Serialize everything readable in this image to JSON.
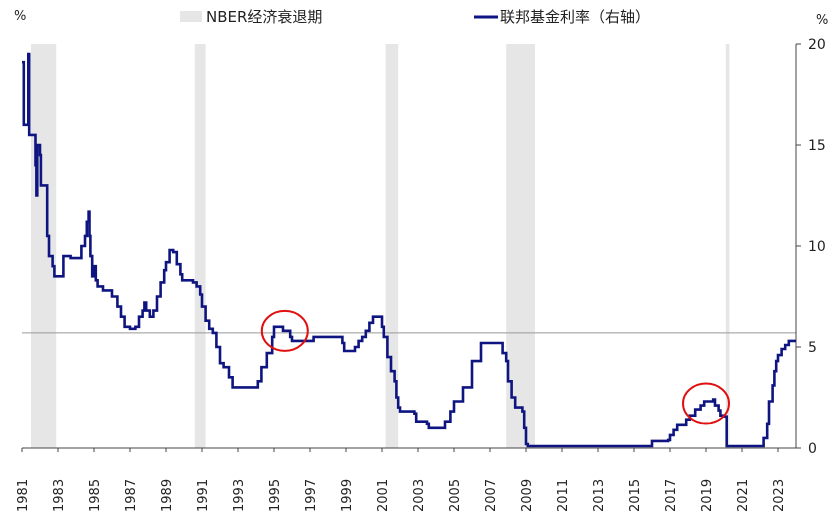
{
  "chart_data": {
    "type": "line",
    "title": "",
    "xlabel": "",
    "ylabel": "",
    "left_axis_unit": "%",
    "right_axis_unit": "%",
    "xlim": [
      1981.0,
      2024.0
    ],
    "ylim": [
      0,
      20
    ],
    "right_yticks": [
      0,
      5,
      10,
      15,
      20
    ],
    "x_tick_labels": [
      "1981",
      "1983",
      "1985",
      "1987",
      "1989",
      "1991",
      "1993",
      "1995",
      "1997",
      "1999",
      "2001",
      "2003",
      "2005",
      "2007",
      "2009",
      "2011",
      "2013",
      "2015",
      "2017",
      "2019",
      "2021",
      "2023"
    ],
    "reference_line_y": 5.7,
    "legend": {
      "placement": "top",
      "recession_label": "NBER经济衰退期",
      "series_label": "联邦基金利率（右轴）"
    },
    "recession_periods": [
      [
        1981.5,
        1982.9
      ],
      [
        1990.6,
        1991.2
      ],
      [
        2001.2,
        2001.9
      ],
      [
        2007.9,
        2009.5
      ],
      [
        2020.1,
        2020.3
      ]
    ],
    "highlights": [
      {
        "x": 1995.6,
        "y": 5.8
      },
      {
        "x": 2019.0,
        "y": 2.2
      }
    ],
    "colors": {
      "line": "#0f1580",
      "recession": "#e6e6e6",
      "highlight": "#e01010",
      "reference": "#999999"
    },
    "series": [
      {
        "name": "联邦基金利率（右轴）",
        "points": [
          [
            1981.0,
            19.1
          ],
          [
            1981.1,
            16.0
          ],
          [
            1981.3,
            16.0
          ],
          [
            1981.35,
            19.5
          ],
          [
            1981.4,
            15.5
          ],
          [
            1981.7,
            15.5
          ],
          [
            1981.75,
            14.0
          ],
          [
            1981.8,
            12.5
          ],
          [
            1981.85,
            15.0
          ],
          [
            1982.0,
            14.5
          ],
          [
            1982.05,
            13.0
          ],
          [
            1982.3,
            13.0
          ],
          [
            1982.4,
            10.5
          ],
          [
            1982.5,
            9.5
          ],
          [
            1982.7,
            9.0
          ],
          [
            1982.8,
            8.5
          ],
          [
            1983.2,
            8.5
          ],
          [
            1983.3,
            9.5
          ],
          [
            1983.6,
            9.5
          ],
          [
            1983.7,
            9.4
          ],
          [
            1984.2,
            9.4
          ],
          [
            1984.3,
            10.0
          ],
          [
            1984.5,
            10.5
          ],
          [
            1984.6,
            11.2
          ],
          [
            1984.7,
            11.7
          ],
          [
            1984.75,
            10.5
          ],
          [
            1984.8,
            9.5
          ],
          [
            1984.9,
            8.5
          ],
          [
            1985.0,
            9.0
          ],
          [
            1985.1,
            8.3
          ],
          [
            1985.2,
            8.0
          ],
          [
            1985.5,
            7.8
          ],
          [
            1985.9,
            7.8
          ],
          [
            1986.0,
            7.5
          ],
          [
            1986.3,
            7.0
          ],
          [
            1986.5,
            6.5
          ],
          [
            1986.7,
            6.0
          ],
          [
            1987.0,
            5.9
          ],
          [
            1987.3,
            6.0
          ],
          [
            1987.5,
            6.5
          ],
          [
            1987.7,
            6.8
          ],
          [
            1987.8,
            7.2
          ],
          [
            1987.9,
            6.8
          ],
          [
            1988.1,
            6.5
          ],
          [
            1988.3,
            6.8
          ],
          [
            1988.5,
            7.5
          ],
          [
            1988.7,
            8.2
          ],
          [
            1988.9,
            8.8
          ],
          [
            1989.0,
            9.2
          ],
          [
            1989.2,
            9.8
          ],
          [
            1989.4,
            9.7
          ],
          [
            1989.6,
            9.1
          ],
          [
            1989.8,
            8.6
          ],
          [
            1989.9,
            8.3
          ],
          [
            1990.5,
            8.2
          ],
          [
            1990.7,
            8.0
          ],
          [
            1990.9,
            7.6
          ],
          [
            1991.0,
            7.0
          ],
          [
            1991.2,
            6.3
          ],
          [
            1991.4,
            5.9
          ],
          [
            1991.6,
            5.7
          ],
          [
            1991.8,
            5.0
          ],
          [
            1992.0,
            4.2
          ],
          [
            1992.2,
            4.0
          ],
          [
            1992.5,
            3.5
          ],
          [
            1992.7,
            3.0
          ],
          [
            1993.0,
            3.0
          ],
          [
            1993.9,
            3.0
          ],
          [
            1994.1,
            3.3
          ],
          [
            1994.3,
            4.0
          ],
          [
            1994.6,
            4.7
          ],
          [
            1994.9,
            5.5
          ],
          [
            1995.0,
            6.0
          ],
          [
            1995.5,
            5.8
          ],
          [
            1995.9,
            5.5
          ],
          [
            1996.0,
            5.3
          ],
          [
            1996.9,
            5.3
          ],
          [
            1997.2,
            5.5
          ],
          [
            1998.7,
            5.5
          ],
          [
            1998.8,
            5.2
          ],
          [
            1998.9,
            4.8
          ],
          [
            1999.4,
            4.8
          ],
          [
            1999.5,
            5.0
          ],
          [
            1999.7,
            5.3
          ],
          [
            1999.9,
            5.5
          ],
          [
            2000.1,
            5.8
          ],
          [
            2000.3,
            6.2
          ],
          [
            2000.5,
            6.5
          ],
          [
            2000.9,
            6.5
          ],
          [
            2001.0,
            6.0
          ],
          [
            2001.1,
            5.5
          ],
          [
            2001.3,
            4.5
          ],
          [
            2001.5,
            3.8
          ],
          [
            2001.7,
            3.3
          ],
          [
            2001.8,
            2.5
          ],
          [
            2001.9,
            2.0
          ],
          [
            2002.0,
            1.8
          ],
          [
            2002.8,
            1.7
          ],
          [
            2002.9,
            1.3
          ],
          [
            2003.5,
            1.2
          ],
          [
            2003.6,
            1.0
          ],
          [
            2004.4,
            1.0
          ],
          [
            2004.5,
            1.3
          ],
          [
            2004.8,
            1.8
          ],
          [
            2005.0,
            2.3
          ],
          [
            2005.5,
            3.0
          ],
          [
            2006.0,
            4.3
          ],
          [
            2006.5,
            5.2
          ],
          [
            2007.5,
            5.2
          ],
          [
            2007.7,
            4.7
          ],
          [
            2007.9,
            4.3
          ],
          [
            2008.0,
            3.3
          ],
          [
            2008.2,
            2.5
          ],
          [
            2008.4,
            2.0
          ],
          [
            2008.8,
            1.8
          ],
          [
            2008.9,
            1.0
          ],
          [
            2009.0,
            0.2
          ],
          [
            2009.1,
            0.1
          ],
          [
            2015.9,
            0.1
          ],
          [
            2016.0,
            0.35
          ],
          [
            2016.9,
            0.4
          ],
          [
            2017.0,
            0.65
          ],
          [
            2017.2,
            0.9
          ],
          [
            2017.4,
            1.15
          ],
          [
            2017.9,
            1.4
          ],
          [
            2018.1,
            1.6
          ],
          [
            2018.4,
            1.9
          ],
          [
            2018.7,
            2.1
          ],
          [
            2018.9,
            2.3
          ],
          [
            2019.4,
            2.4
          ],
          [
            2019.5,
            2.1
          ],
          [
            2019.7,
            1.85
          ],
          [
            2019.8,
            1.6
          ],
          [
            2020.0,
            1.55
          ],
          [
            2020.15,
            0.1
          ],
          [
            2022.1,
            0.1
          ],
          [
            2022.2,
            0.5
          ],
          [
            2022.4,
            1.2
          ],
          [
            2022.5,
            2.3
          ],
          [
            2022.7,
            3.1
          ],
          [
            2022.8,
            3.8
          ],
          [
            2022.9,
            4.3
          ],
          [
            2023.0,
            4.6
          ],
          [
            2023.2,
            4.9
          ],
          [
            2023.4,
            5.1
          ],
          [
            2023.6,
            5.3
          ],
          [
            2024.0,
            5.3
          ]
        ]
      }
    ]
  }
}
